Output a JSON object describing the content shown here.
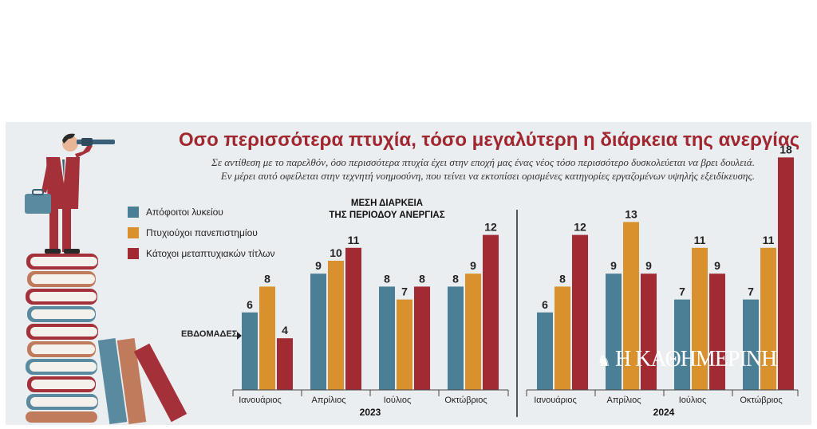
{
  "header": {
    "title": "Οσο περισσότερα πτυχία, τόσο μεγαλύτερη η διάρκεια της ανεργίας",
    "subtitle_line1": "Σε αντίθεση με το παρελθόν, όσο περισσότερα πτυχία έχει στην εποχή μας ένας νέος τόσο περισσότερο δυσκολεύεται να βρει δουλειά.",
    "subtitle_line2": "Εν μέρει αυτό οφείλεται στην τεχνητή νοημοσύνη, που τείνει να εκτοπίσει ορισμένες κατηγορίες εργαζομένων υψηλής εξειδίκευσης."
  },
  "chart_data": {
    "type": "bar",
    "title_line1": "ΜΕΣΗ ΔΙΑΡΚΕΙΑ",
    "title_line2": "ΤΗΣ ΠΕΡΙΟΔΟΥ ΑΝΕΡΓΙΑΣ",
    "ylabel": "ΕΒΔΟΜΑΔΕΣ",
    "years": [
      "2023",
      "2024"
    ],
    "months": [
      "Ιανουάριος",
      "Απρίλιος",
      "Ιούλιος",
      "Οκτώβριος"
    ],
    "series": [
      {
        "name": "Απόφοιτοι λυκείου",
        "color": "#4a7f96",
        "values": [
          6,
          9,
          8,
          8,
          6,
          9,
          7,
          7
        ]
      },
      {
        "name": "Πτυχιούχοι πανεπιστημίου",
        "color": "#d8912d",
        "values": [
          8,
          10,
          7,
          9,
          8,
          13,
          11,
          11
        ]
      },
      {
        "name": "Κάτοχοι μεταπτυχιακών τίτλων",
        "color": "#a12a33",
        "values": [
          4,
          11,
          8,
          12,
          12,
          9,
          9,
          18
        ]
      }
    ]
  },
  "logo": {
    "text": "Η ΚΑΘΗΜΕΡΙΝΗ"
  }
}
